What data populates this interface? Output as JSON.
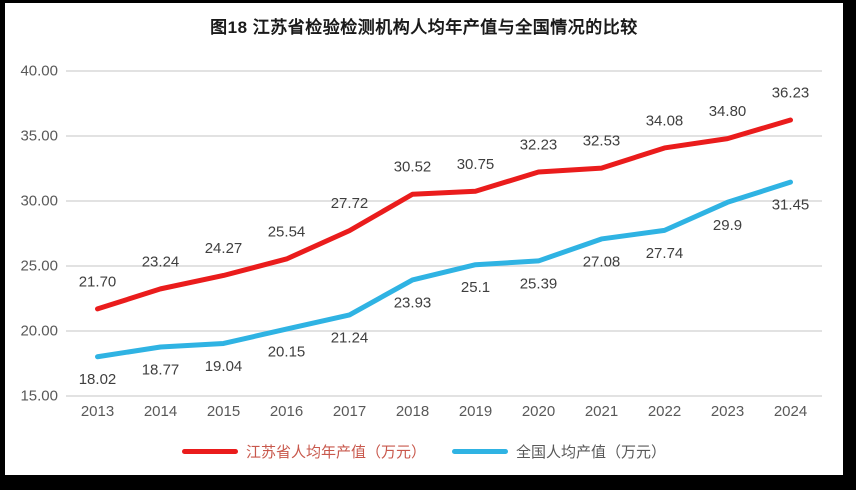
{
  "page": {
    "frame_color": "#000000",
    "paper_color": "#ffffff"
  },
  "chart_data": {
    "type": "line",
    "title": "图18  江苏省检验检测机构人均年产值与全国情况的比较",
    "categories": [
      "2013",
      "2014",
      "2015",
      "2016",
      "2017",
      "2018",
      "2019",
      "2020",
      "2021",
      "2022",
      "2023",
      "2024"
    ],
    "series": [
      {
        "name": "江苏省人均年产值（万元）",
        "color": "#ea1c1c",
        "values": [
          21.7,
          23.24,
          24.27,
          25.54,
          27.72,
          30.52,
          30.75,
          32.23,
          32.53,
          34.08,
          34.8,
          36.23
        ],
        "point_labels": [
          "21.70",
          "23.24",
          "24.27",
          "25.54",
          "27.72",
          "30.52",
          "30.75",
          "32.23",
          "32.53",
          "34.08",
          "34.80",
          "36.23"
        ],
        "label_position": "above",
        "legend_text_color": "#c8584c"
      },
      {
        "name": "全国人均产值（万元）",
        "color": "#2fb3e3",
        "values": [
          18.02,
          18.77,
          19.04,
          20.15,
          21.24,
          23.93,
          25.1,
          25.39,
          27.08,
          27.74,
          29.9,
          31.45
        ],
        "point_labels": [
          "18.02",
          "18.77",
          "19.04",
          "20.15",
          "21.24",
          "23.93",
          "25.1",
          "25.39",
          "27.08",
          "27.74",
          "29.9",
          "31.45"
        ],
        "label_position": "below",
        "legend_text_color": "#595959"
      }
    ],
    "y_axis": {
      "min": 15,
      "max": 40,
      "step": 5,
      "tick_labels": [
        "15.00",
        "20.00",
        "25.00",
        "30.00",
        "35.00",
        "40.00"
      ]
    },
    "xlabel": "",
    "ylabel": "",
    "grid": true,
    "gridline_color": "#d9d9d9",
    "tick_label_color": "#595959",
    "data_label_color": "#3f3f3f",
    "legend_position": "bottom"
  }
}
